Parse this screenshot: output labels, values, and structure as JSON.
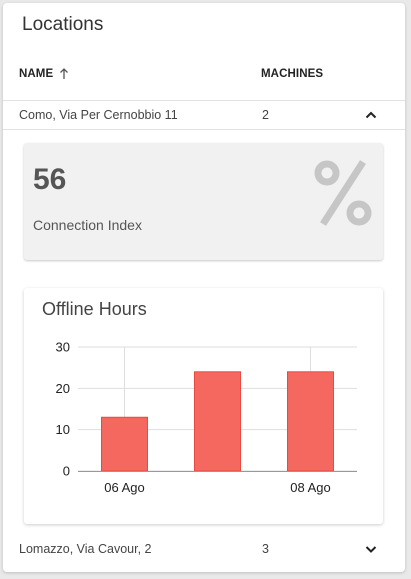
{
  "panel": {
    "title": "Locations"
  },
  "table": {
    "headers": {
      "name": "NAME",
      "machines": "MACHINES"
    },
    "rows": [
      {
        "location": "Como, Via Per Cernobbio 11",
        "machines": "2",
        "expanded": true
      },
      {
        "location": "Lomazzo, Via Cavour, 2",
        "machines": "3",
        "expanded": false
      }
    ]
  },
  "details": {
    "stat": {
      "value": "56",
      "label": "Connection Index",
      "icon": "percent-icon"
    },
    "offline": {
      "title": "Offline Hours"
    }
  },
  "chart_data": {
    "type": "bar",
    "title": "Offline Hours",
    "x": [
      "2022-08-06",
      "2022-08-07",
      "2022-08-08"
    ],
    "values": [
      13,
      24,
      24
    ],
    "x_tick_labels": [
      {
        "x": "2022-08-06",
        "label": "06 Ago"
      },
      {
        "x": "2022-08-08",
        "label": "08 Ago"
      }
    ],
    "y_ticks": [
      0,
      10,
      20,
      30
    ],
    "ylim": [
      0,
      30
    ],
    "xlabel": "",
    "ylabel": "",
    "grid": true,
    "colors": {
      "bar": "#f56860",
      "bar_stroke": "#e84a42",
      "grid": "#dedede",
      "axis": "#999999"
    }
  }
}
